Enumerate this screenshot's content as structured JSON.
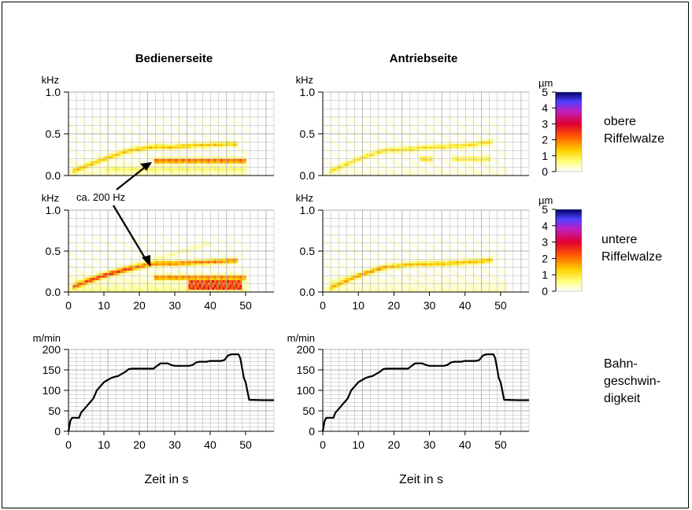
{
  "columns": {
    "left": "Bedienerseite",
    "right": "Antriebseite"
  },
  "row_labels": {
    "top": [
      "obere",
      "Riffelwalze"
    ],
    "middle": [
      "untere",
      "Riffelwalze"
    ],
    "bottom": [
      "Bahn-",
      "geschwin-",
      "digkeit"
    ]
  },
  "annotation": "ca. 200 Hz",
  "xlabel": "Zeit in s",
  "units": {
    "freq": "kHz",
    "amp": "µm",
    "speed": "m/min"
  },
  "x_ticks": [
    "0",
    "10",
    "20",
    "30",
    "40",
    "50"
  ],
  "freq_ticks": [
    "0.0",
    "0.5",
    "1.0"
  ],
  "speed_ticks": [
    "0",
    "50",
    "100",
    "150",
    "200"
  ],
  "colorbar_ticks": [
    "0",
    "1",
    "2",
    "3",
    "4",
    "5"
  ],
  "colors": {
    "colormap": [
      "#ffffff",
      "#ffff80",
      "#ffd400",
      "#ff5a00",
      "#e00030",
      "#c020c0",
      "#5040ff",
      "#000060"
    ],
    "grid": "#b0b0b0",
    "line": "#000000"
  },
  "chart_data": [
    {
      "type": "heatmap",
      "title": "",
      "column": "Bedienerseite",
      "row": "obere Riffelwalze",
      "xlim": [
        0,
        58
      ],
      "ylim": [
        0,
        1.0
      ],
      "ylabel": "kHz",
      "colorbar": {
        "label": "µm",
        "range": [
          0,
          5
        ]
      },
      "ridges": [
        {
          "x": [
            1,
            10,
            17,
            25,
            28,
            35,
            45,
            48
          ],
          "y": [
            0.05,
            0.2,
            0.3,
            0.35,
            0.34,
            0.36,
            0.38,
            0.38
          ],
          "intensity": 1.5
        },
        {
          "x": [
            24,
            50
          ],
          "y": [
            0.18,
            0.18
          ],
          "intensity": 2.5
        },
        {
          "x": [
            10,
            50
          ],
          "y": [
            0.08,
            0.08
          ],
          "intensity": 0.6
        }
      ],
      "background": {
        "x": [
          0,
          51
        ],
        "level": 0.4
      }
    },
    {
      "type": "heatmap",
      "title": "",
      "column": "Antriebseite",
      "row": "obere Riffelwalze",
      "xlim": [
        0,
        58
      ],
      "ylim": [
        0,
        1.0
      ],
      "ylabel": "kHz",
      "colorbar": {
        "label": "µm",
        "range": [
          0,
          5
        ]
      },
      "ridges": [
        {
          "x": [
            2,
            10,
            17,
            25,
            30,
            40,
            48
          ],
          "y": [
            0.05,
            0.2,
            0.3,
            0.32,
            0.34,
            0.36,
            0.41
          ],
          "intensity": 1.2
        },
        {
          "x": [
            27,
            31
          ],
          "y": [
            0.2,
            0.2
          ],
          "intensity": 1.2
        },
        {
          "x": [
            36,
            47
          ],
          "y": [
            0.2,
            0.2
          ],
          "intensity": 1.0
        }
      ],
      "background": {
        "x": [
          0,
          52
        ],
        "level": 0.2
      }
    },
    {
      "type": "heatmap",
      "title": "",
      "column": "Bedienerseite",
      "row": "untere Riffelwalze",
      "xlim": [
        0,
        58
      ],
      "ylim": [
        0,
        1.0
      ],
      "ylabel": "kHz",
      "colorbar": {
        "label": "µm",
        "range": [
          0,
          5
        ]
      },
      "ridges": [
        {
          "x": [
            1,
            10,
            17,
            22,
            25,
            30,
            40,
            48
          ],
          "y": [
            0.06,
            0.2,
            0.28,
            0.33,
            0.35,
            0.35,
            0.37,
            0.39
          ],
          "intensity": 2.2
        },
        {
          "x": [
            24,
            50
          ],
          "y": [
            0.18,
            0.18
          ],
          "intensity": 2.2
        },
        {
          "x": [
            2,
            18
          ],
          "y": [
            0.12,
            0.32
          ],
          "intensity": 0.5
        },
        {
          "x": [
            5,
            40
          ],
          "y": [
            0.15,
            0.6
          ],
          "intensity": 0.4
        }
      ],
      "hot": {
        "x": [
          34,
          49
        ],
        "y": [
          0.02,
          0.16
        ],
        "level": 2.5
      },
      "background": {
        "x": [
          0,
          51
        ],
        "level": 0.7
      }
    },
    {
      "type": "heatmap",
      "title": "",
      "column": "Antriebseite",
      "row": "untere Riffelwalze",
      "xlim": [
        0,
        58
      ],
      "ylim": [
        0,
        1.0
      ],
      "ylabel": "kHz",
      "colorbar": {
        "label": "µm",
        "range": [
          0,
          5
        ]
      },
      "ridges": [
        {
          "x": [
            2,
            10,
            17,
            25,
            35,
            45,
            48
          ],
          "y": [
            0.05,
            0.2,
            0.3,
            0.34,
            0.35,
            0.38,
            0.4
          ],
          "intensity": 1.6
        },
        {
          "x": [
            2,
            18
          ],
          "y": [
            0.12,
            0.32
          ],
          "intensity": 0.4
        }
      ],
      "background": {
        "x": [
          0,
          52
        ],
        "level": 0.4
      }
    },
    {
      "type": "line",
      "title": "",
      "column": "Bedienerseite",
      "row": "Bahngeschwindigkeit",
      "xlabel": "Zeit in s",
      "ylabel": "m/min",
      "xlim": [
        0,
        58
      ],
      "ylim": [
        0,
        200
      ],
      "series": [
        {
          "x": [
            0,
            0.5,
            1,
            3,
            3.5,
            4,
            4.5,
            5,
            5.5,
            6,
            6.5,
            7,
            7.5,
            8,
            9,
            10,
            11,
            12,
            13,
            14,
            15,
            16,
            17,
            18,
            20,
            22,
            24,
            25,
            26,
            27,
            28,
            29,
            30,
            31,
            32,
            33,
            34,
            35,
            36,
            37,
            38,
            39,
            40,
            41,
            42,
            43,
            44,
            45,
            46,
            47,
            48,
            48.5,
            49,
            49.5,
            50,
            51,
            55,
            58
          ],
          "y": [
            0,
            25,
            33,
            33,
            45,
            50,
            55,
            60,
            65,
            70,
            75,
            80,
            90,
            100,
            110,
            120,
            125,
            130,
            133,
            135,
            140,
            145,
            152,
            153,
            153,
            153,
            153,
            160,
            166,
            166,
            166,
            162,
            160,
            160,
            160,
            160,
            160,
            162,
            168,
            170,
            170,
            170,
            172,
            172,
            172,
            172,
            174,
            185,
            188,
            188,
            188,
            178,
            155,
            130,
            120,
            77,
            76,
            76
          ]
        }
      ]
    },
    {
      "type": "line",
      "title": "",
      "column": "Antriebseite",
      "row": "Bahngeschwindigkeit",
      "xlabel": "Zeit in s",
      "ylabel": "m/min",
      "xlim": [
        0,
        58
      ],
      "ylim": [
        0,
        200
      ],
      "series": [
        {
          "x": [
            0,
            0.5,
            1,
            3,
            3.5,
            4,
            4.5,
            5,
            5.5,
            6,
            6.5,
            7,
            7.5,
            8,
            9,
            10,
            11,
            12,
            13,
            14,
            15,
            16,
            17,
            18,
            20,
            22,
            24,
            25,
            26,
            27,
            28,
            29,
            30,
            31,
            32,
            33,
            34,
            35,
            36,
            37,
            38,
            39,
            40,
            41,
            42,
            43,
            44,
            45,
            46,
            47,
            48,
            48.5,
            49,
            49.5,
            50,
            51,
            55,
            58
          ],
          "y": [
            0,
            25,
            33,
            33,
            45,
            50,
            55,
            60,
            65,
            70,
            75,
            80,
            90,
            100,
            110,
            120,
            125,
            130,
            133,
            135,
            140,
            145,
            152,
            153,
            153,
            153,
            153,
            160,
            166,
            166,
            166,
            162,
            160,
            160,
            160,
            160,
            160,
            162,
            168,
            170,
            170,
            170,
            172,
            172,
            172,
            172,
            174,
            185,
            188,
            188,
            188,
            178,
            155,
            130,
            120,
            77,
            76,
            76
          ]
        }
      ]
    }
  ]
}
